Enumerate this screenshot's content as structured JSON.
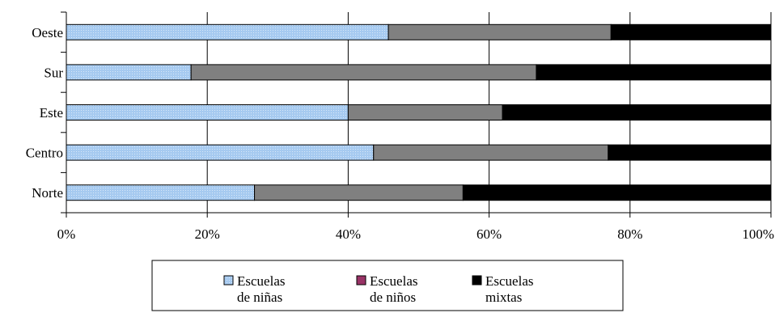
{
  "chart_data": {
    "type": "bar",
    "orientation": "horizontal",
    "stacked": "percent",
    "title": "",
    "xlabel": "",
    "ylabel": "",
    "categories": [
      "Oeste",
      "Sur",
      "Este",
      "Centro",
      "Norte"
    ],
    "xlim": [
      0,
      100
    ],
    "x_ticks": [
      {
        "value": 0,
        "label": "0%"
      },
      {
        "value": 20,
        "label": "20%"
      },
      {
        "value": 40,
        "label": "40%"
      },
      {
        "value": 60,
        "label": "60%"
      },
      {
        "value": 80,
        "label": "80%"
      },
      {
        "value": 100,
        "label": "100%"
      }
    ],
    "grid": "vertical",
    "legend_position": "bottom",
    "series": [
      {
        "name": "Escuelas de niñas",
        "legend_lines": [
          "Escuelas",
          "de niñas"
        ],
        "color": "#a6caf0",
        "pattern": "dotted",
        "values": [
          45.7,
          17.7,
          40.0,
          43.6,
          26.7
        ]
      },
      {
        "name": "Escuelas de niños",
        "legend_lines": [
          "Escuelas",
          "de niños"
        ],
        "color": "#808080",
        "legend_color": "#993366",
        "values": [
          31.6,
          49.0,
          21.9,
          33.3,
          29.6
        ]
      },
      {
        "name": "Escuelas mixtas",
        "legend_lines": [
          "Escuelas",
          "mixtas"
        ],
        "color": "#000000",
        "values": [
          22.7,
          33.3,
          38.1,
          23.1,
          43.7
        ]
      }
    ]
  }
}
